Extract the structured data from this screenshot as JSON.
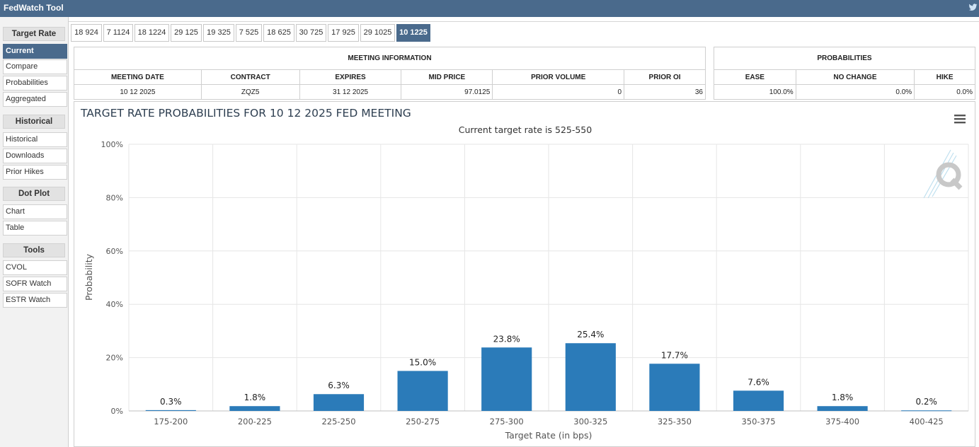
{
  "app": {
    "title": "FedWatch Tool"
  },
  "icons": {
    "social": "twitter-icon",
    "menu": "hamburger-menu-icon",
    "logo": "q-logo-icon"
  },
  "colors": {
    "header_bg": "#4a6a8c",
    "bar": "#2b7bb9"
  },
  "sidebar": {
    "groups": [
      {
        "header": "Target Rate",
        "items": [
          "Current",
          "Compare",
          "Probabilities",
          "Aggregated"
        ]
      },
      {
        "header": "Historical",
        "items": [
          "Historical",
          "Downloads",
          "Prior Hikes"
        ]
      },
      {
        "header": "Dot Plot",
        "items": [
          "Chart",
          "Table"
        ]
      },
      {
        "header": "Tools",
        "items": [
          "CVOL",
          "SOFR Watch",
          "ESTR Watch"
        ]
      }
    ],
    "active_item": "Current"
  },
  "tabs": {
    "items": [
      "18 924",
      "7 1124",
      "18 1224",
      "29 125",
      "19 325",
      "7 525",
      "18 625",
      "30 725",
      "17 925",
      "29 1025",
      "10 1225"
    ],
    "active": "10 1225"
  },
  "meeting_info": {
    "caption": "MEETING INFORMATION",
    "headers": [
      "MEETING DATE",
      "CONTRACT",
      "EXPIRES",
      "MID PRICE",
      "PRIOR VOLUME",
      "PRIOR OI"
    ],
    "row": [
      "10 12 2025",
      "ZQZ5",
      "31 12 2025",
      "97.0125",
      "0",
      "36"
    ]
  },
  "probabilities": {
    "caption": "PROBABILITIES",
    "headers": [
      "EASE",
      "NO CHANGE",
      "HIKE"
    ],
    "row": [
      "100.0%",
      "0.0%",
      "0.0%"
    ]
  },
  "chart_data": {
    "type": "bar",
    "title": "TARGET RATE PROBABILITIES FOR 10 12 2025 FED MEETING",
    "subtitle": "Current target rate is 525-550",
    "xlabel": "Target Rate (in bps)",
    "ylabel": "Probability",
    "categories": [
      "175-200",
      "200-225",
      "225-250",
      "250-275",
      "275-300",
      "300-325",
      "325-350",
      "350-375",
      "375-400",
      "400-425"
    ],
    "values": [
      0.3,
      1.8,
      6.3,
      15.0,
      23.8,
      25.4,
      17.7,
      7.6,
      1.8,
      0.2
    ],
    "data_labels": [
      "0.3%",
      "1.8%",
      "6.3%",
      "15.0%",
      "23.8%",
      "25.4%",
      "17.7%",
      "7.6%",
      "1.8%",
      "0.2%"
    ],
    "ylim": [
      0,
      100
    ],
    "yticks": [
      "0%",
      "20%",
      "40%",
      "60%",
      "80%",
      "100%"
    ],
    "grid": true,
    "legend": "none"
  }
}
